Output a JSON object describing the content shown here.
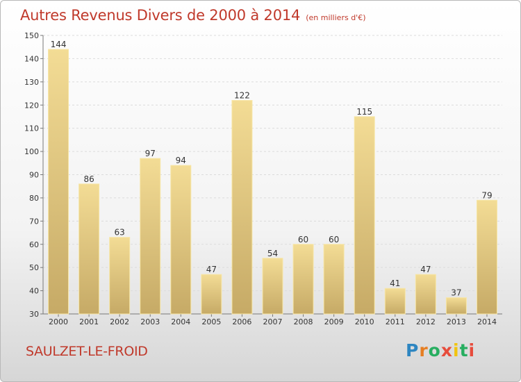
{
  "header": {
    "title": "Autres Revenus Divers de 2000 à 2014",
    "subtitle": "(en milliers d'€)"
  },
  "footer": {
    "commune": "SAULZET-LE-FROID",
    "logo_text": "Proxiti",
    "logo_colors": [
      "#2e86c1",
      "#e67e22",
      "#27ae60",
      "#e74c3c",
      "#f1c40f",
      "#27ae60",
      "#e74c3c"
    ]
  },
  "colors": {
    "bar_fill_top": "#f3dc95",
    "bar_fill_bottom": "#c6aa66",
    "bar_border": "#f7e6a6",
    "title": "#c0392b"
  },
  "chart_data": {
    "type": "bar",
    "title": "Autres Revenus Divers de 2000 à 2014",
    "subtitle": "(en milliers d'€)",
    "categories": [
      "2000",
      "2001",
      "2002",
      "2003",
      "2004",
      "2005",
      "2006",
      "2007",
      "2008",
      "2009",
      "2010",
      "2011",
      "2012",
      "2013",
      "2014"
    ],
    "values": [
      144,
      86,
      63,
      97,
      94,
      47,
      122,
      54,
      60,
      60,
      115,
      41,
      47,
      37,
      79
    ],
    "ylim": [
      30,
      150
    ],
    "yticks": [
      30,
      40,
      50,
      60,
      70,
      80,
      90,
      100,
      110,
      120,
      130,
      140,
      150
    ],
    "grid": true,
    "legend": "none"
  }
}
